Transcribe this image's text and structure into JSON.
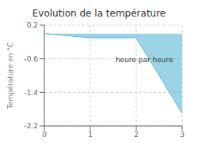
{
  "chart_data": {
    "type": "area",
    "title": "Evolution de la température",
    "ylabel": "Température en °C",
    "annotations": [
      {
        "text": "heure par heure",
        "x": 1.55,
        "y": -0.568
      }
    ],
    "x": [
      0,
      1,
      2,
      3
    ],
    "values": [
      0.0,
      -0.1,
      -0.1,
      -1.9
    ],
    "color": "#5bb8d4",
    "xlim": [
      0,
      3
    ],
    "ylim": [
      -2.2,
      0.2
    ],
    "xticks": [
      0,
      1,
      2,
      3
    ],
    "yticks": [
      0.2,
      -0.6,
      -1.4,
      -2.2
    ],
    "grid": true
  }
}
